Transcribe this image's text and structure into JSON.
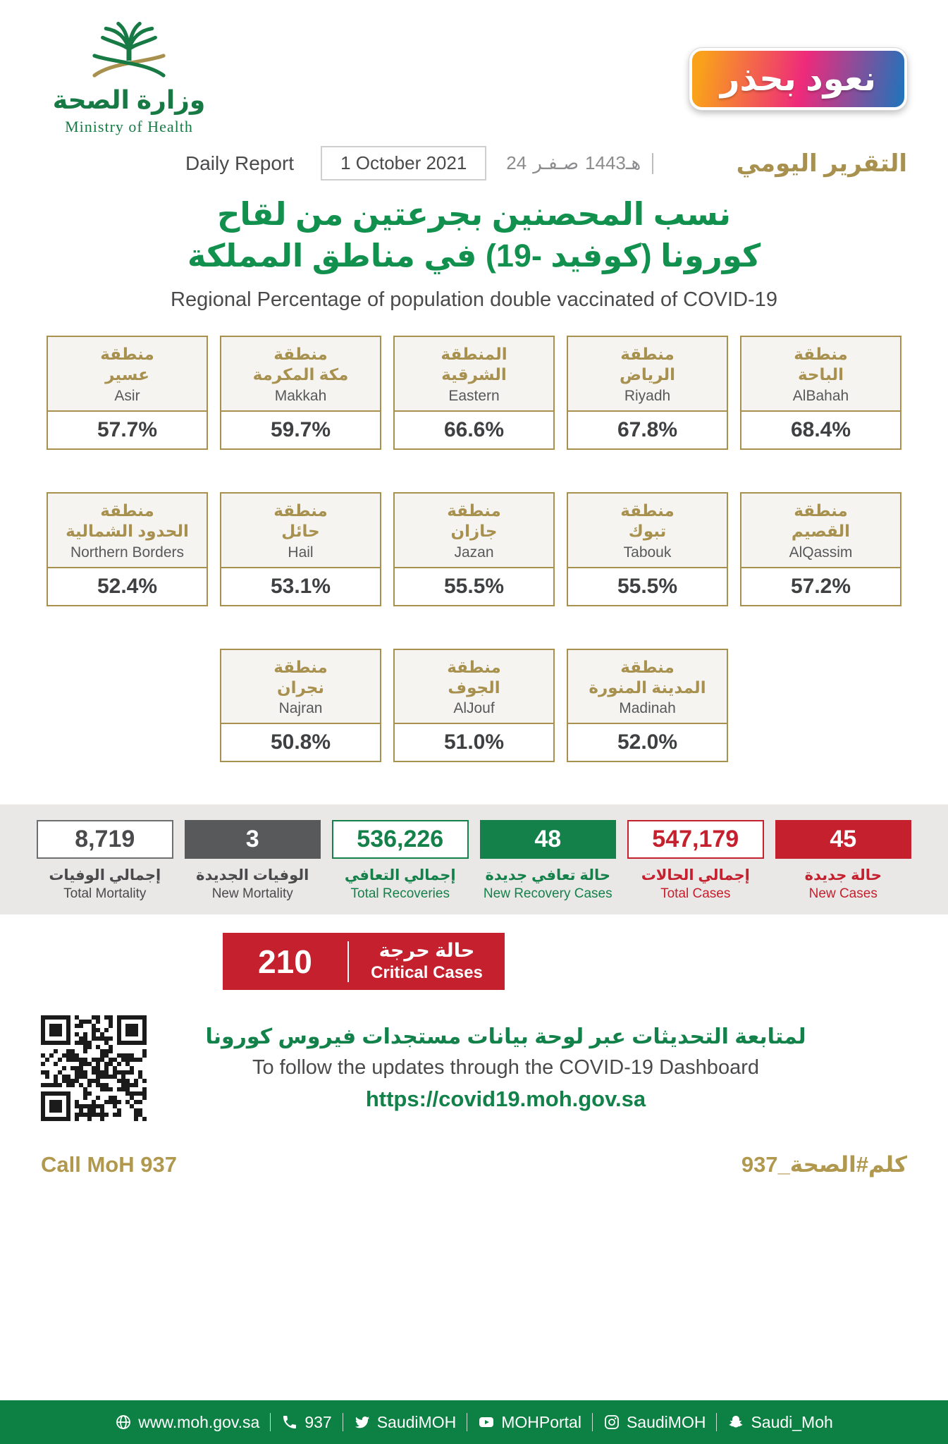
{
  "logo": {
    "ar": "وزارة الصحة",
    "en": "Ministry of Health"
  },
  "badge": {
    "text": "نعود بحذر"
  },
  "report_bar": {
    "daily_report_en": "Daily Report",
    "date_en": "1 October 2021",
    "hijri_day": "24",
    "hijri_month": "صـفـر",
    "hijri_year": "1443هـ",
    "daily_report_ar": "التقرير اليومي"
  },
  "title": {
    "ar_line1": "نسب المحصنين بجرعتين من لقاح",
    "ar_line2": "كورونا (كوفيد -19) في مناطق المملكة",
    "en": "Regional Percentage of population double vaccinated of COVID-19"
  },
  "regions": {
    "rows": [
      {
        "cards": [
          {
            "ar1": "منطقة",
            "ar2": "عسير",
            "en": "Asir",
            "value": "57.7%"
          },
          {
            "ar1": "منطقة",
            "ar2": "مكة المكرمة",
            "en": "Makkah",
            "value": "59.7%"
          },
          {
            "ar1": "المنطقة",
            "ar2": "الشرقية",
            "en": "Eastern",
            "value": "66.6%"
          },
          {
            "ar1": "منطقة",
            "ar2": "الرياض",
            "en": "Riyadh",
            "value": "67.8%"
          },
          {
            "ar1": "منطقة",
            "ar2": "الباحة",
            "en": "AlBahah",
            "value": "68.4%"
          }
        ]
      },
      {
        "cards": [
          {
            "ar1": "منطقة",
            "ar2": "الحدود الشمالية",
            "en": "Northern Borders",
            "value": "52.4%"
          },
          {
            "ar1": "منطقة",
            "ar2": "حائل",
            "en": "Hail",
            "value": "53.1%"
          },
          {
            "ar1": "منطقة",
            "ar2": "جازان",
            "en": "Jazan",
            "value": "55.5%"
          },
          {
            "ar1": "منطقة",
            "ar2": "تبوك",
            "en": "Tabouk",
            "value": "55.5%"
          },
          {
            "ar1": "منطقة",
            "ar2": "القصيم",
            "en": "AlQassim",
            "value": "57.2%"
          }
        ]
      },
      {
        "cards": [
          {
            "ar1": "منطقة",
            "ar2": "نجران",
            "en": "Najran",
            "value": "50.8%"
          },
          {
            "ar1": "منطقة",
            "ar2": "الجوف",
            "en": "AlJouf",
            "value": "51.0%"
          },
          {
            "ar1": "منطقة",
            "ar2": "المدينة المنورة",
            "en": "Madinah",
            "value": "52.0%"
          }
        ]
      }
    ]
  },
  "stats": {
    "items": [
      {
        "value": "8,719",
        "ar": "إجمالي الوفيات",
        "en": "Total Mortality"
      },
      {
        "value": "3",
        "ar": "الوفيات الجديدة",
        "en": "New Mortality"
      },
      {
        "value": "536,226",
        "ar": "إجمالي التعافي",
        "en": "Total Recoveries"
      },
      {
        "value": "48",
        "ar": "حالة تعافي جديدة",
        "en": "New Recovery Cases"
      },
      {
        "value": "547,179",
        "ar": "إجمالي الحالات",
        "en": "Total Cases"
      },
      {
        "value": "45",
        "ar": "حالة جديدة",
        "en": "New Cases"
      }
    ]
  },
  "critical": {
    "value": "210",
    "ar": "حالة حرجة",
    "en": "Critical Cases"
  },
  "dashboard": {
    "ar": "لمتابعة التحديثات عبر لوحة بيانات مستجدات فيروس كورونا",
    "en": "To follow the updates through the COVID-19 Dashboard",
    "url": "https://covid19.moh.gov.sa"
  },
  "footer": {
    "call_en": "Call MoH 937",
    "call_ar": "كلم#الصحة_937"
  },
  "social": {
    "items": [
      {
        "icon": "globe-icon",
        "label": "www.moh.gov.sa"
      },
      {
        "icon": "phone-icon",
        "label": "937"
      },
      {
        "icon": "twitter-icon",
        "label": "SaudiMOH"
      },
      {
        "icon": "youtube-icon",
        "label": "MOHPortal"
      },
      {
        "icon": "instagram-icon",
        "label": "SaudiMOH"
      },
      {
        "icon": "snapchat-icon",
        "label": "Saudi_Moh"
      }
    ]
  },
  "colors": {
    "green": "#0D8044",
    "gold": "#A8914F",
    "red": "#C5202E",
    "dark_gray": "#58595B"
  }
}
